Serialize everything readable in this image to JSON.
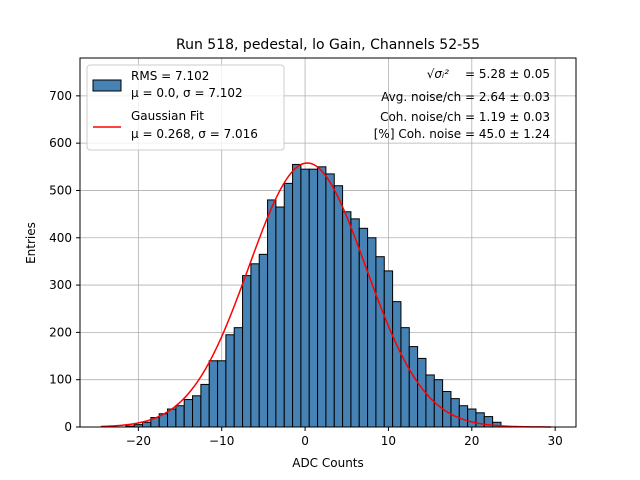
{
  "chart_data": {
    "type": "bar",
    "title": "Run 518, pedestal, lo Gain, Channels 52-55",
    "xlabel": "ADC Counts",
    "ylabel": "Entries",
    "xlim": [
      -27,
      32.5
    ],
    "ylim": [
      0,
      780
    ],
    "xticks": [
      -20,
      -10,
      0,
      10,
      20,
      30
    ],
    "yticks": [
      0,
      100,
      200,
      300,
      400,
      500,
      600,
      700
    ],
    "grid": true,
    "bin_width": 1,
    "bin_start": -21.5,
    "values": [
      2,
      5,
      10,
      20,
      28,
      38,
      45,
      58,
      66,
      90,
      140,
      140,
      195,
      210,
      320,
      345,
      365,
      480,
      465,
      515,
      555,
      545,
      545,
      550,
      535,
      510,
      455,
      440,
      420,
      400,
      360,
      330,
      265,
      210,
      170,
      145,
      110,
      100,
      75,
      60,
      45,
      38,
      30,
      22,
      10
    ],
    "bar_color": "#4682b4",
    "fit": {
      "label": "Gaussian Fit",
      "mu": 0.268,
      "sigma": 7.016,
      "amplitude": 558,
      "x_range": [
        -24.5,
        29.5
      ],
      "color": "#ff0000"
    },
    "legend": {
      "placement": "top-left",
      "entries": [
        {
          "marker": "bar",
          "line1": "RMS = 7.102",
          "line2": "μ = 0.0, σ = 7.102"
        },
        {
          "marker": "line",
          "line1": "Gaussian Fit",
          "line2": "μ = 0.268, σ = 7.016"
        }
      ]
    },
    "annotations": {
      "sigma_symbol": "√σᵢ²",
      "sigma_value": "= 5.28 ± 0.05",
      "avg_noise": "Avg. noise/ch = 2.64 ± 0.03",
      "coh_noise": "Coh. noise/ch = 1.19 ± 0.03",
      "coh_percent": "[%] Coh. noise = 45.0 ± 1.24"
    }
  }
}
